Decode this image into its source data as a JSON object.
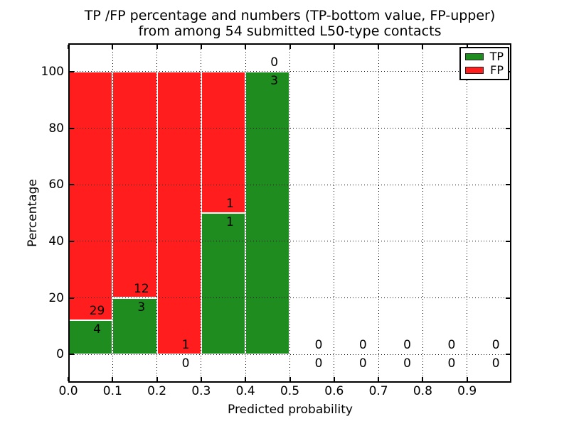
{
  "title": {
    "line1": "TP /FP percentage and numbers (TP-bottom value, FP-upper)",
    "line2": "from among 54 submitted L50-type contacts"
  },
  "axes": {
    "xlabel": "Predicted probability",
    "ylabel": "Percentage",
    "xticks": [
      "0.0",
      "0.1",
      "0.2",
      "0.3",
      "0.4",
      "0.5",
      "0.6",
      "0.7",
      "0.8",
      "0.9"
    ],
    "yticks": [
      "0",
      "20",
      "40",
      "60",
      "80",
      "100"
    ]
  },
  "legend": [
    {
      "label": "TP",
      "color": "#1e8c1e"
    },
    {
      "label": "FP",
      "color": "#ff1d1d"
    }
  ],
  "colors": {
    "tp_green": "#1e8c1e",
    "fp_red": "#ff1d1d",
    "frame": "#000000",
    "background": "#ffffff",
    "bar_edge": "#ffffff",
    "grid": "#000000"
  },
  "chart_data": {
    "type": "bar",
    "stacked": true,
    "title": "TP /FP percentage and numbers (TP-bottom value, FP-upper) from among 54 submitted L50-type contacts",
    "xlabel": "Predicted probability",
    "ylabel": "Percentage",
    "xlim": [
      0.0,
      1.0
    ],
    "ylim": [
      -10,
      110
    ],
    "bin_width": 0.1,
    "categories": [
      "0.0-0.1",
      "0.1-0.2",
      "0.2-0.3",
      "0.3-0.4",
      "0.4-0.5",
      "0.5-0.6",
      "0.6-0.7",
      "0.7-0.8",
      "0.8-0.9",
      "0.9-1.0"
    ],
    "series": [
      {
        "name": "TP",
        "color": "#1e8c1e",
        "counts": [
          4,
          3,
          0,
          1,
          3,
          0,
          0,
          0,
          0,
          0
        ],
        "percent": [
          12.12,
          20,
          0,
          50,
          100,
          0,
          0,
          0,
          0,
          0
        ]
      },
      {
        "name": "FP",
        "color": "#ff1d1d",
        "counts": [
          29,
          12,
          1,
          1,
          0,
          0,
          0,
          0,
          0,
          0
        ],
        "percent": [
          87.88,
          80,
          100,
          50,
          0,
          0,
          0,
          0,
          0,
          0
        ]
      }
    ],
    "total_submitted": 54,
    "annotation_note": "TP count below boundary, FP count above boundary",
    "grid": "dotted",
    "legend_position": "upper right"
  }
}
